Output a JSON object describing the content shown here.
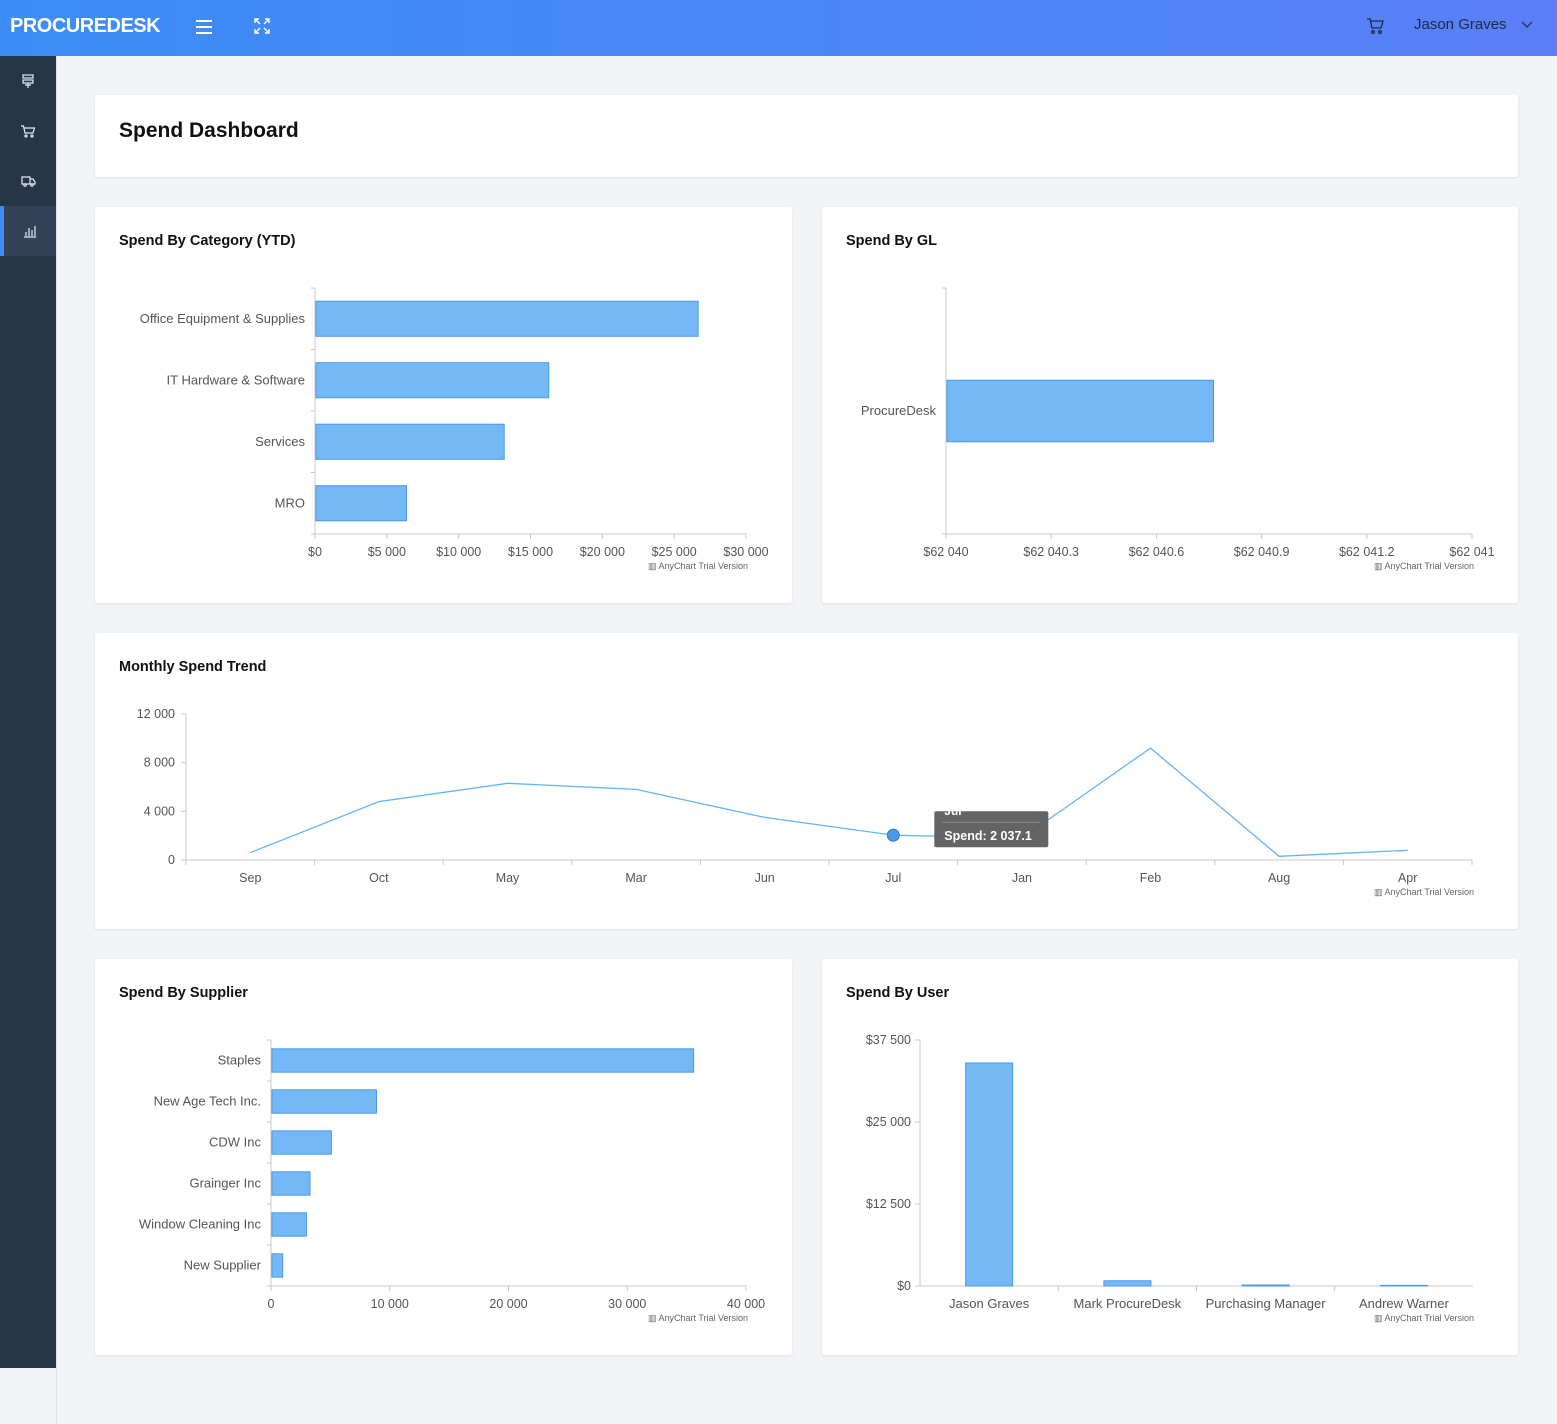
{
  "app": {
    "logo": "PROCUREDESK",
    "user_name": "Jason Graves"
  },
  "icons": {
    "menu": "hamburger-icon",
    "fullscreen": "expand-icon",
    "cart": "cart-icon",
    "user_menu": "chevron-down-icon"
  },
  "sidebar": {
    "items": [
      {
        "icon": "stack-icon",
        "active": false
      },
      {
        "icon": "cart-icon",
        "active": false
      },
      {
        "icon": "truck-icon",
        "active": false
      },
      {
        "icon": "bar-chart-icon",
        "active": true
      }
    ]
  },
  "colors": {
    "header_start": "#3d8cf5",
    "header_end": "#5b7ef6",
    "sidebar": "#263547",
    "bar": "#74b9f6",
    "bar_stroke": "#4a9ae8",
    "line": "#64b5f6"
  },
  "page": {
    "title": "Spend Dashboard"
  },
  "watermark": "AnyChart Trial Version",
  "chart_data": [
    {
      "id": "spend-by-category",
      "type": "bar",
      "orientation": "horizontal",
      "title": "Spend By Category (YTD)",
      "categories": [
        "Office Equipment & Supplies",
        "IT Hardware & Software",
        "Services",
        "MRO"
      ],
      "values": [
        26600,
        16200,
        13100,
        6300
      ],
      "xlim": [
        0,
        30000
      ],
      "ticks": [
        "$0",
        "$5 000",
        "$10 000",
        "$15 000",
        "$20 000",
        "$25 000",
        "$30 000"
      ]
    },
    {
      "id": "spend-by-gl",
      "type": "bar",
      "orientation": "horizontal",
      "title": "Spend By GL",
      "categories": [
        "ProcureDesk"
      ],
      "values": [
        62040.76
      ],
      "xlim": [
        62040,
        62041.5
      ],
      "ticks": [
        "$62 040",
        "$62 040.3",
        "$62 040.6",
        "$62 040.9",
        "$62 041.2",
        "$62 041"
      ]
    },
    {
      "id": "monthly-spend-trend",
      "type": "line",
      "title": "Monthly Spend Trend",
      "x": [
        "Sep",
        "Oct",
        "May",
        "Mar",
        "Jun",
        "Jul",
        "Jan",
        "Feb",
        "Aug",
        "Apr"
      ],
      "series": [
        {
          "values": [
            600,
            4800,
            6300,
            5800,
            3500,
            2037.1,
            1800,
            9200,
            300,
            800
          ]
        }
      ],
      "ylim": [
        0,
        12000
      ],
      "yticks": [
        "0",
        "4 000",
        "8 000",
        "12 000"
      ],
      "tooltip": {
        "title": "Jul",
        "text": "Spend: 2 037.1",
        "index": 5
      }
    },
    {
      "id": "spend-by-supplier",
      "type": "bar",
      "orientation": "horizontal",
      "title": "Spend By Supplier",
      "categories": [
        "Staples",
        "New Age Tech Inc.",
        "CDW Inc",
        "Grainger Inc",
        "Window Cleaning Inc",
        "New Supplier"
      ],
      "values": [
        35500,
        8800,
        5000,
        3200,
        2900,
        900
      ],
      "xlim": [
        0,
        40000
      ],
      "ticks": [
        "0",
        "10 000",
        "20 000",
        "30 000",
        "40 000"
      ]
    },
    {
      "id": "spend-by-user",
      "type": "bar",
      "orientation": "vertical",
      "title": "Spend By User",
      "categories": [
        "Jason Graves",
        "Mark ProcureDesk",
        "Purchasing Manager",
        "Andrew Warner"
      ],
      "values": [
        34000,
        800,
        150,
        100
      ],
      "ylim": [
        0,
        37500
      ],
      "yticks": [
        "$0",
        "$12 500",
        "$25 000",
        "$37 500"
      ]
    }
  ]
}
